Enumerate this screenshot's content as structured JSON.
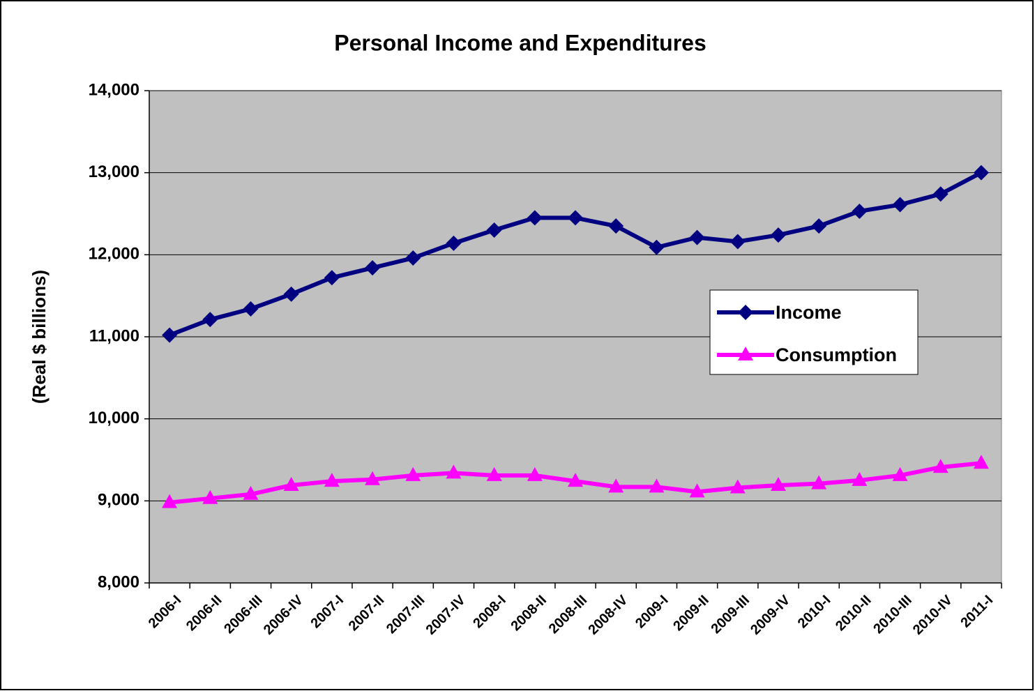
{
  "chart_data": {
    "type": "line",
    "title": "Personal Income and Expenditures",
    "y_label": "(Real $ billions)",
    "categories": [
      "2006-I",
      "2006-II",
      "2006-III",
      "2006-IV",
      "2007-I",
      "2007-II",
      "2007-III",
      "2007-IV",
      "2008-I",
      "2008-II",
      "2008-III",
      "2008-IV",
      "2009-I",
      "2009-II",
      "2009-III",
      "2009-IV",
      "2010-I",
      "2010-II",
      "2010-III",
      "2010-IV",
      "2011-I"
    ],
    "series": [
      {
        "name": "Income",
        "color": "#000080",
        "marker": "diamond",
        "values": [
          11020,
          11210,
          11340,
          11520,
          11720,
          11840,
          11960,
          12140,
          12300,
          12450,
          12450,
          12350,
          12090,
          12210,
          12160,
          12240,
          12350,
          12530,
          12610,
          12740,
          13000
        ]
      },
      {
        "name": "Consumption",
        "color": "#ff00ff",
        "marker": "triangle",
        "values": [
          8980,
          9030,
          9080,
          9190,
          9240,
          9260,
          9310,
          9340,
          9310,
          9310,
          9240,
          9170,
          9170,
          9110,
          9160,
          9190,
          9210,
          9250,
          9310,
          9410,
          9460
        ]
      }
    ],
    "ylim": [
      8000,
      14000
    ],
    "yticks": [
      {
        "value": 8000,
        "label": "8,000"
      },
      {
        "value": 9000,
        "label": "9,000"
      },
      {
        "value": 10000,
        "label": "10,000"
      },
      {
        "value": 11000,
        "label": "11,000"
      },
      {
        "value": 12000,
        "label": "12,000"
      },
      {
        "value": 13000,
        "label": "13,000"
      },
      {
        "value": 14000,
        "label": "14,000"
      }
    ],
    "grid": true,
    "legend": "right"
  }
}
